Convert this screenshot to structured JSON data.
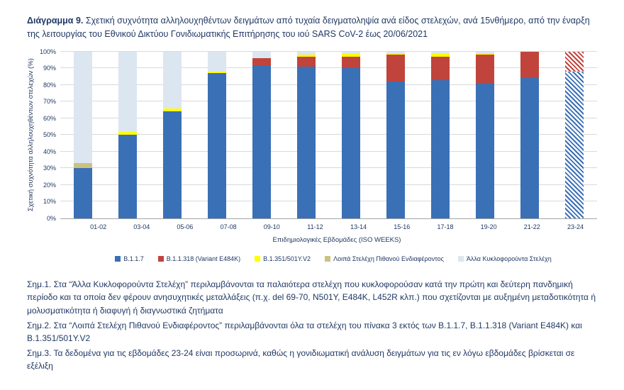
{
  "title": {
    "bold": "Διάγραμμα 9.",
    "rest": " Σχετική συχνότητα αλληλουχηθέντων δειγμάτων από τυχαία δειγματοληψία ανά είδος στελεχών, ανά 15νθήμερο, από την έναρξη της λειτουργίας του Εθνικού Δικτύου Γονιδιωματικής Επιτήρησης του ιού SARS CoV-2 έως 20/06/2021"
  },
  "chart_data": {
    "type": "bar",
    "stacked": true,
    "title": "Σχετική συχνότητα αλληλουχηθέντων δειγμάτων ανά είδος στελεχών ανά 15νθήμερο",
    "xlabel": "Επιδημιολογικές Εβδομάδες (ISO WEEKS)",
    "ylabel": "Σχετική συχνότητα αλληλουχηθέντων στελεχών (%)",
    "ylim": [
      0,
      100
    ],
    "yticks": [
      "0%",
      "10%",
      "20%",
      "30%",
      "40%",
      "50%",
      "60%",
      "70%",
      "80%",
      "90%",
      "100%"
    ],
    "grid": true,
    "gridline_color": "#d9d9d9",
    "legend_position": "bottom",
    "categories": [
      "01-02",
      "03-04",
      "05-06",
      "07-08",
      "09-10",
      "11-12",
      "13-14",
      "15-16",
      "17-18",
      "19-20",
      "21-22",
      "23-24"
    ],
    "provisional_category": "23-24",
    "series": [
      {
        "name": "B.1.1.7",
        "color": "#3a70b6",
        "values": [
          30,
          50,
          64,
          87,
          92,
          91,
          90,
          82,
          83,
          81,
          84,
          88
        ]
      },
      {
        "name": "B.1.1.318 (Variant E484K)",
        "color": "#c0443c",
        "values": [
          0,
          0,
          0,
          0,
          4,
          6,
          7,
          16,
          14,
          17,
          16,
          12
        ]
      },
      {
        "name": "B.1.351/501Y.V2",
        "color": "#ffff00",
        "values": [
          0,
          2,
          2,
          1,
          0,
          1,
          2,
          1,
          2,
          1,
          0,
          0
        ]
      },
      {
        "name": "Λοιπά Στελέχη Πιθανού Ενδιαφέροντος",
        "color": "#cbc27f",
        "values": [
          3,
          0,
          0,
          0,
          0,
          0,
          0,
          0,
          0,
          0,
          0,
          0
        ]
      },
      {
        "name": "Άλλα Κυκλοφορούντα Στελέχη",
        "color": "#dce6f1",
        "values": [
          67,
          48,
          34,
          12,
          4,
          2,
          1,
          1,
          1,
          1,
          0,
          0
        ]
      }
    ]
  },
  "notes": [
    "Σημ.1.  Στα “Άλλα Κυκλοφορούντα Στελέχη” περιλαμβάνονται τα παλαιότερα στελέχη που κυκλοφορούσαν κατά την πρώτη και δεύτερη πανδημική περίοδο και τα οποία δεν φέρουν ανησυχητικές μεταλλάξεις (π.χ. del 69-70, N501Y, E484K, L452R κλπ.) που σχετίζονται με αυξημένη μεταδοτικότητα ή μολυσματικότητα ή διαφυγή ή διαγνωστικά ζητήματα",
    "Σημ.2. Στα “Λοιπά Στελέχη Πιθανού Ενδιαφέροντος” περιλαμβάνονται όλα τα στελέχη του πίνακα 3 εκτός των B.1.1.7, B.1.1.318 (Variant E484K) και B.1.351/501Y.V2",
    "Σημ.3. Τα δεδομένα για τις εβδομάδες 23-24 είναι προσωρινά, καθώς η γονιδιωματική ανάλυση δειγμάτων για τις εν λόγω εβδομάδες βρίσκεται σε εξέλιξη"
  ]
}
